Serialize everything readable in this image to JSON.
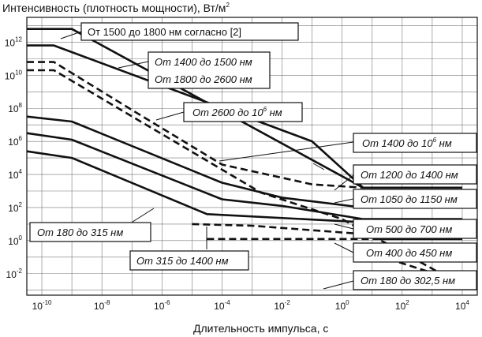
{
  "chart_data": {
    "type": "line",
    "title": "",
    "ylabel": "Интенсивность (плотность мощности), Вт/м",
    "ylabel_exp": "2",
    "xlabel": "Длительность импульса, с",
    "x_scale": "log10",
    "y_scale": "log10",
    "xlim_exp": [
      -10.5,
      4.5
    ],
    "ylim_exp": [
      -3.3,
      13.5
    ],
    "grid": true,
    "x_ticks": [
      {
        "base": "10",
        "exp": "-10",
        "value": -10
      },
      {
        "base": "10",
        "exp": "-8",
        "value": -8
      },
      {
        "base": "10",
        "exp": "-6",
        "value": -6
      },
      {
        "base": "10",
        "exp": "-4",
        "value": -4
      },
      {
        "base": "10",
        "exp": "-2",
        "value": -2
      },
      {
        "base": "10",
        "exp": "0",
        "value": 0
      },
      {
        "base": "10",
        "exp": "2",
        "value": 2
      },
      {
        "base": "10",
        "exp": "4",
        "value": 4
      }
    ],
    "y_ticks": [
      {
        "base": "10",
        "exp": "12",
        "value": 12
      },
      {
        "base": "10",
        "exp": "10",
        "value": 10
      },
      {
        "base": "10",
        "exp": "8",
        "value": 8
      },
      {
        "base": "10",
        "exp": "6",
        "value": 6
      },
      {
        "base": "10",
        "exp": "4",
        "value": 4
      },
      {
        "base": "10",
        "exp": "2",
        "value": 2
      },
      {
        "base": "10",
        "exp": "0",
        "value": 0
      },
      {
        "base": "10",
        "exp": "-2",
        "value": -2
      }
    ],
    "series": [
      {
        "name": "От 1500 до 1800 нм согласно [2]",
        "style": "solid",
        "points": [
          [
            -10.5,
            12.8
          ],
          [
            -9,
            12.8
          ],
          [
            0.7,
            3.2
          ],
          [
            4,
            3.2
          ]
        ]
      },
      {
        "name": "От 1400 до 1500 нм / От 1800 до 2600 нм",
        "style": "solid",
        "points": [
          [
            -10.5,
            11.8
          ],
          [
            -9.6,
            11.8
          ],
          [
            -1,
            6.0
          ],
          [
            0.7,
            3.2
          ]
        ]
      },
      {
        "name": "От 2600 до 10^6 нм",
        "style": "dashed",
        "points": [
          [
            -10.5,
            10.8
          ],
          [
            -9.6,
            10.8
          ],
          [
            -7,
            7.9
          ],
          [
            -4,
            4.6
          ],
          [
            -1,
            3.4
          ],
          [
            0.7,
            3.2
          ]
        ]
      },
      {
        "name": "От 1400 до 10^6 нм",
        "style": "dashed",
        "points": [
          [
            -10.5,
            10.3
          ],
          [
            -9.6,
            10.3
          ],
          [
            -2.7,
            2.9
          ],
          [
            0,
            1.3
          ],
          [
            3.6,
            -2.3
          ]
        ]
      },
      {
        "name": "От 1200 до 1400 нм",
        "style": "solid",
        "points": [
          [
            -10.5,
            7.5
          ],
          [
            -9,
            7.2
          ],
          [
            -4,
            3.5
          ],
          [
            -2,
            2.6
          ],
          [
            0.7,
            2.0
          ],
          [
            4,
            2.0
          ]
        ]
      },
      {
        "name": "От 1050 до 1150 нм",
        "style": "solid",
        "points": [
          [
            -10.5,
            6.5
          ],
          [
            -9,
            6.1
          ],
          [
            -4,
            2.5
          ],
          [
            -2,
            2.1
          ],
          [
            0.7,
            1.3
          ],
          [
            4,
            1.3
          ]
        ]
      },
      {
        "name": "От 500 до 700 нм",
        "style": "solid",
        "points": [
          [
            -10.5,
            5.4
          ],
          [
            -9,
            5.0
          ],
          [
            -4.5,
            1.6
          ],
          [
            4,
            0.8
          ]
        ]
      },
      {
        "name": "От 315 до 1400 нм",
        "style": "dashed",
        "points": [
          [
            -4.5,
            0.1
          ],
          [
            1.2,
            0.1
          ]
        ]
      },
      {
        "name": "От 400 до 450 нм",
        "style": "solid",
        "points": [
          [
            1.2,
            0.1
          ],
          [
            4,
            0.1
          ]
        ]
      },
      {
        "name": "От 180 до 315 нм",
        "style": "dashed",
        "points": [
          [
            -5,
            1.0
          ],
          [
            -3,
            0.9
          ],
          [
            0.7,
            0.4
          ]
        ]
      },
      {
        "name": "От 180 до 302,5 нм",
        "style": "dashed",
        "points": [
          [
            0.5,
            -0.5
          ],
          [
            3.6,
            -2.3
          ]
        ]
      }
    ],
    "annotations": [
      {
        "text": "От 1500 до 1800 нм согласно [2]",
        "italic": false
      },
      {
        "text": "От 1400 до 1500 нм",
        "italic": true
      },
      {
        "text": "От 1800 до 2600 нм",
        "italic": true
      },
      {
        "text": "От 2600 до 10",
        "exp": "6",
        "unit": " нм",
        "italic": true
      },
      {
        "text": "От 1400 до 10",
        "exp": "6",
        "unit": " нм",
        "italic": true
      },
      {
        "text": "От 1200 до 1400 нм",
        "italic": true
      },
      {
        "text": "От 1050 до 1150 нм",
        "italic": true
      },
      {
        "text": "От 500 до 700 нм",
        "italic": true
      },
      {
        "text": "От 400 до 450 нм",
        "italic": true
      },
      {
        "text": "От 180 до 302,5 нм",
        "italic": true
      },
      {
        "text": "От 180 до 315 нм",
        "italic": true
      },
      {
        "text": "От 315 до 1400 нм",
        "italic": true
      }
    ]
  }
}
